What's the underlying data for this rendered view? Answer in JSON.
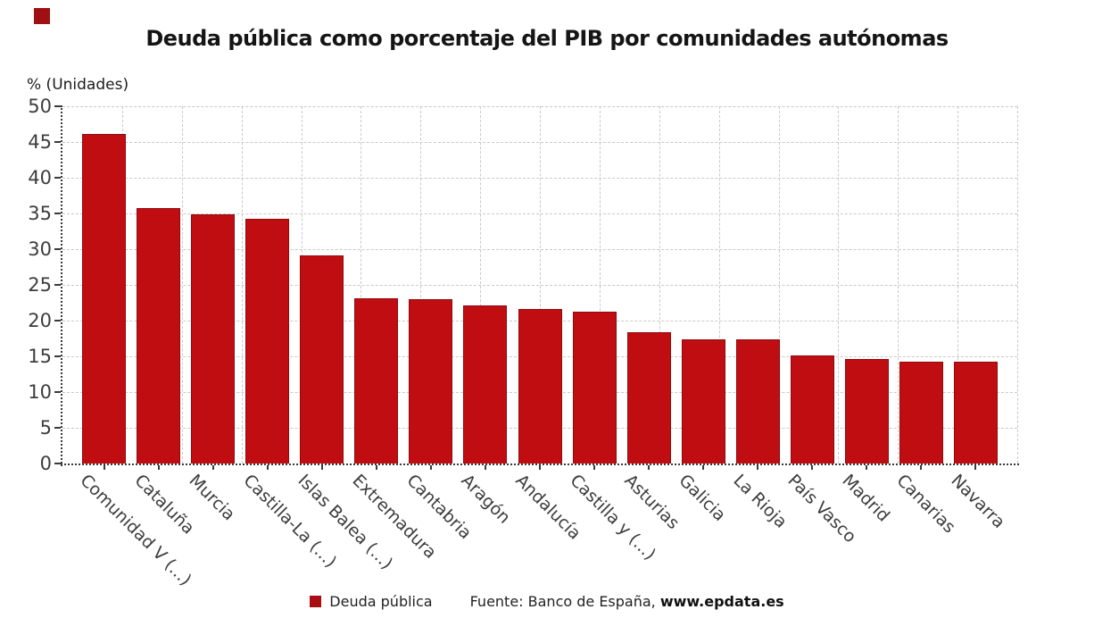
{
  "logo": {
    "color": "#a01013"
  },
  "chart_data": {
    "type": "bar",
    "title": "Deuda pública como porcentaje del PIB por comunidades autónomas",
    "ylabel": "% (Unidades)",
    "xlabel": "",
    "ylim": [
      0,
      50
    ],
    "ytick_step": 5,
    "grid": true,
    "x_grid_intervals": 16,
    "legend_position": "bottom",
    "bar_color": "#c00d12",
    "bar_border_color": "#8f0b0f",
    "categories": [
      "Comunidad V (...)",
      "Cataluña",
      "Murcia",
      "Castilla-La (...)",
      "Islas Balea (...)",
      "Extremadura",
      "Cantabria",
      "Aragón",
      "Andalucía",
      "Castilla y (...)",
      "Asturias",
      "Galicia",
      "La Rioja",
      "País Vasco",
      "Madrid",
      "Canarias",
      "Navarra"
    ],
    "values": [
      46.1,
      35.8,
      34.9,
      34.3,
      29.1,
      23.1,
      23.0,
      22.1,
      21.6,
      21.2,
      18.4,
      17.4,
      17.4,
      15.1,
      14.6,
      14.3,
      14.3
    ]
  },
  "legend": {
    "label": "Deuda pública",
    "swatch_color": "#a90e12"
  },
  "source": {
    "prefix": "Fuente: Banco de España, ",
    "link": "www.epdata.es"
  },
  "axis": {
    "grid_color": "#c9c9c9",
    "axis_color": "#3a3a3a",
    "label_color": "#3d3d3d"
  }
}
